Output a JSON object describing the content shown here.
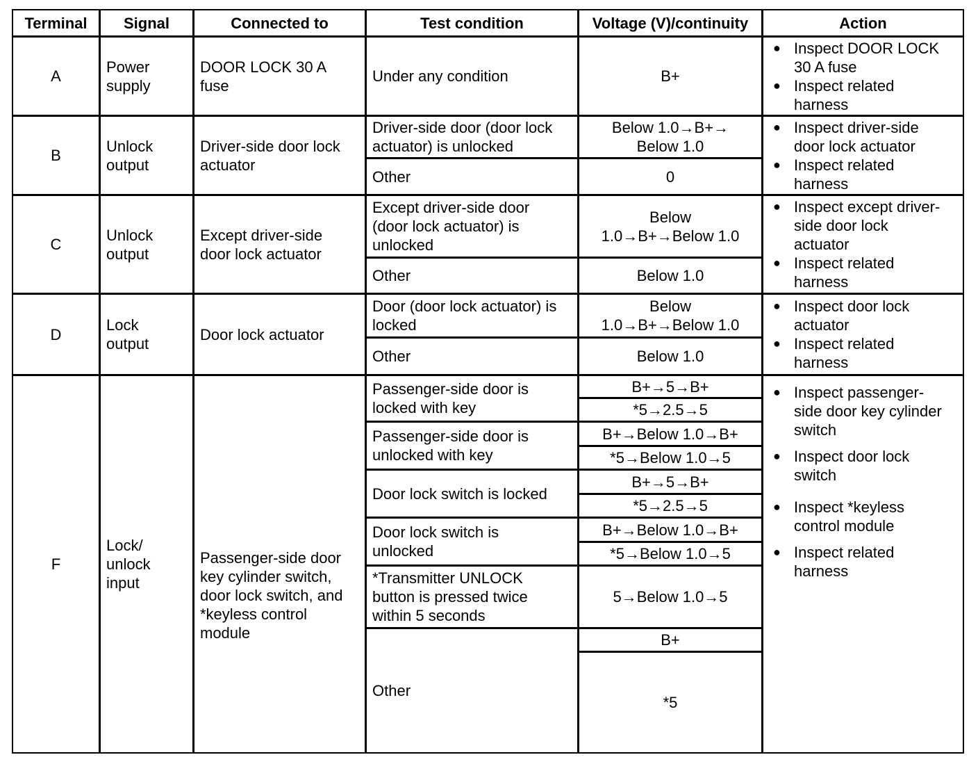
{
  "headers": [
    "Terminal",
    "Signal",
    "Connected to",
    "Test condition",
    "Voltage (V)/continuity",
    "Action"
  ],
  "rows": {
    "A": {
      "terminal": "A",
      "signal": "Power\nsupply",
      "connected": "DOOR LOCK 30 A\nfuse",
      "conditions": [
        "Under any condition"
      ],
      "voltages": [
        "B+"
      ],
      "actions": [
        "Inspect DOOR LOCK\n30 A fuse",
        "Inspect related\nharness"
      ]
    },
    "B": {
      "terminal": "B",
      "signal": "Unlock\noutput",
      "connected": "Driver-side door lock\nactuator",
      "conditions": [
        "Driver-side door (door lock\nactuator) is unlocked",
        "Other"
      ],
      "voltages": [
        "Below 1.0→B+→\nBelow 1.0",
        "0"
      ],
      "actions": [
        "Inspect driver-side\ndoor lock actuator",
        "Inspect related\nharness"
      ]
    },
    "C": {
      "terminal": "C",
      "signal": "Unlock\noutput",
      "connected": "Except driver-side\ndoor lock actuator",
      "conditions": [
        "Except driver-side door\n(door lock actuator) is\nunlocked",
        "Other"
      ],
      "voltages": [
        "Below\n1.0→B+→Below 1.0",
        "Below 1.0"
      ],
      "actions": [
        "Inspect except driver-\nside door lock\nactuator",
        "Inspect related\nharness"
      ]
    },
    "D": {
      "terminal": "D",
      "signal": "Lock\noutput",
      "connected": "Door lock actuator",
      "conditions": [
        "Door (door lock actuator) is\nlocked",
        "Other"
      ],
      "voltages": [
        "Below\n1.0→B+→Below 1.0",
        "Below 1.0"
      ],
      "actions": [
        "Inspect door lock\nactuator",
        "Inspect related\nharness"
      ]
    },
    "F": {
      "terminal": "F",
      "signal": "Lock/\nunlock\ninput",
      "connected": "Passenger-side door\nkey cylinder switch,\ndoor lock switch, and\n*keyless control\nmodule",
      "conditions": [
        "Passenger-side door is\nlocked with key",
        "Passenger-side door is\nunlocked with key",
        "Door lock switch is locked",
        "Door lock switch is\nunlocked",
        "*Transmitter UNLOCK\nbutton is pressed twice\nwithin 5 seconds",
        "Other"
      ],
      "voltages": [
        "B+→5→B+",
        "*5→2.5→5",
        "B+→Below 1.0→B+",
        "*5→Below 1.0→5",
        "B+→5→B+",
        "*5→2.5→5",
        "B+→Below 1.0→B+",
        "*5→Below 1.0→5",
        "5→Below 1.0→5",
        "B+",
        "*5"
      ],
      "actions": [
        "Inspect passenger-\nside door key cylinder\nswitch",
        "Inspect door lock\nswitch",
        "Inspect *keyless\ncontrol module",
        "Inspect related\nharness"
      ]
    }
  }
}
